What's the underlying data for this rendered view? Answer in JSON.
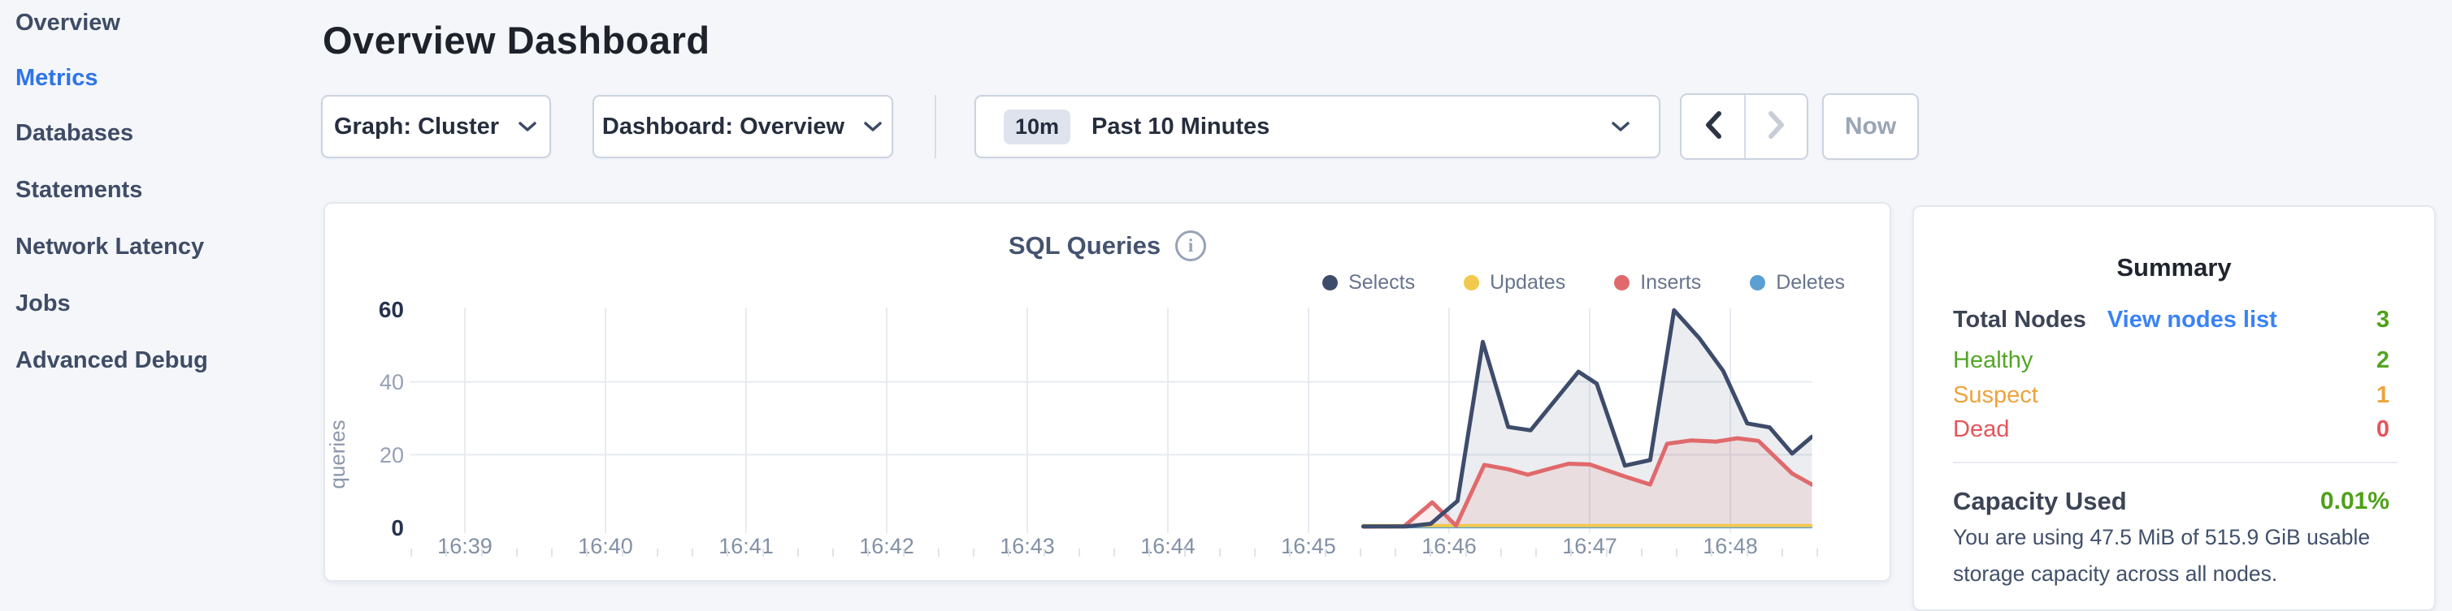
{
  "sidebar": {
    "items": [
      {
        "label": "Overview"
      },
      {
        "label": "Metrics"
      },
      {
        "label": "Databases"
      },
      {
        "label": "Statements"
      },
      {
        "label": "Network Latency"
      },
      {
        "label": "Jobs"
      },
      {
        "label": "Advanced Debug"
      }
    ],
    "active_item": "Metrics",
    "active_color": "#2e74e8"
  },
  "header": {
    "title": "Overview Dashboard"
  },
  "toolbar": {
    "graph_dropdown_label": "Graph: Cluster",
    "dashboard_dropdown_label": "Dashboard: Overview",
    "time_badge": "10m",
    "time_selected": "Past 10 Minutes",
    "now_label": "Now"
  },
  "chart_data": {
    "type": "area",
    "title": "SQL Queries",
    "ylabel": "queries",
    "ylim": [
      0,
      60
    ],
    "ytick_labels": [
      "0",
      "20",
      "40",
      "60"
    ],
    "grid_values": [
      20,
      40
    ],
    "x_labels": [
      "16:39",
      "16:40",
      "16:41",
      "16:42",
      "16:43",
      "16:44",
      "16:45",
      "16:46",
      "16:47",
      "16:48"
    ],
    "x_unit": "minutes after 16:39",
    "legend": [
      {
        "label": "Selects",
        "color": "#3e4c6b"
      },
      {
        "label": "Updates",
        "color": "#f2c94c"
      },
      {
        "label": "Inserts",
        "color": "#e0696c"
      },
      {
        "label": "Deletes",
        "color": "#5b9fd3"
      }
    ],
    "series": [
      {
        "name": "Selects",
        "color": "#3e4c6b",
        "fill": "rgba(62,76,107,0.10)",
        "width": 5,
        "points": [
          [
            6.39,
            0.3
          ],
          [
            6.7,
            0.3
          ],
          [
            6.87,
            1.0
          ],
          [
            7.06,
            7.3
          ],
          [
            7.24,
            51.0
          ],
          [
            7.42,
            27.6
          ],
          [
            7.58,
            26.7
          ],
          [
            7.92,
            42.8
          ],
          [
            8.05,
            39.5
          ],
          [
            8.25,
            17.0
          ],
          [
            8.43,
            18.5
          ],
          [
            8.6,
            59.7
          ],
          [
            8.78,
            52.0
          ],
          [
            8.95,
            43.0
          ],
          [
            9.12,
            28.6
          ],
          [
            9.28,
            27.5
          ],
          [
            9.44,
            20.3
          ],
          [
            9.58,
            24.9
          ]
        ]
      },
      {
        "name": "Inserts",
        "color": "#e0696c",
        "fill": "rgba(224,105,108,0.12)",
        "width": 5,
        "points": [
          [
            6.39,
            0.2
          ],
          [
            6.68,
            0.3
          ],
          [
            6.88,
            6.9
          ],
          [
            7.05,
            0.5
          ],
          [
            7.25,
            17.2
          ],
          [
            7.42,
            16.0
          ],
          [
            7.56,
            14.5
          ],
          [
            7.72,
            16.2
          ],
          [
            7.85,
            17.5
          ],
          [
            8.0,
            17.3
          ],
          [
            8.25,
            14.0
          ],
          [
            8.43,
            11.8
          ],
          [
            8.55,
            23.0
          ],
          [
            8.72,
            23.9
          ],
          [
            8.9,
            23.6
          ],
          [
            9.05,
            24.5
          ],
          [
            9.2,
            23.8
          ],
          [
            9.44,
            14.8
          ],
          [
            9.58,
            11.8
          ]
        ]
      },
      {
        "name": "Updates",
        "color": "#f2c94c",
        "fill": "none",
        "width": 4,
        "points": [
          [
            6.39,
            0.5
          ],
          [
            9.58,
            0.5
          ]
        ]
      },
      {
        "name": "Deletes",
        "color": "#5b9fd3",
        "fill": "none",
        "width": 4,
        "points": [
          [
            6.39,
            0.2
          ],
          [
            9.58,
            0.2
          ]
        ]
      }
    ]
  },
  "summary": {
    "title": "Summary",
    "total_nodes_label": "Total Nodes",
    "view_nodes_link": "View nodes list",
    "total_nodes_value": "3",
    "rows": [
      {
        "label": "Healthy",
        "value": "2",
        "color": "#53a626"
      },
      {
        "label": "Suspect",
        "value": "1",
        "color": "#eda33d"
      },
      {
        "label": "Dead",
        "value": "0",
        "color": "#e4555c"
      }
    ],
    "capacity_label": "Capacity Used",
    "capacity_value": "0.01%",
    "capacity_text": "You are using 47.5 MiB of 515.9 GiB usable storage capacity across all nodes.",
    "green": "#4ea117",
    "link_color": "#3a82f6"
  }
}
